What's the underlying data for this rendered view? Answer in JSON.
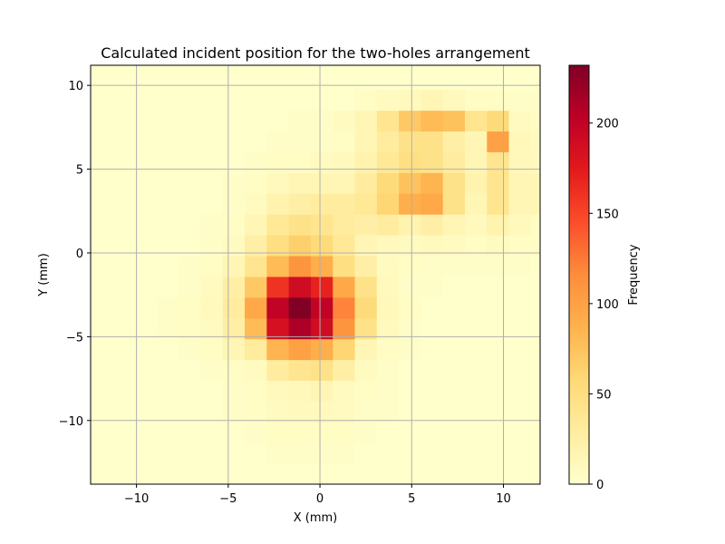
{
  "chart_data": {
    "type": "heatmap",
    "title": "Calculated incident position for the two-holes arrangement",
    "xlabel": "X (mm)",
    "ylabel": "Y (mm)",
    "colorbar_label": "Frequency",
    "colormap": "YlOrRd",
    "xlim": [
      -12.5,
      12
    ],
    "ylim": [
      -13.8,
      11.2
    ],
    "x_ticks": [
      -10,
      -5,
      0,
      5,
      10
    ],
    "x_tick_labels": [
      "−10",
      "−5",
      "0",
      "5",
      "10"
    ],
    "y_ticks": [
      -10,
      -5,
      0,
      5,
      10
    ],
    "y_tick_labels": [
      "−10",
      "−5",
      "0",
      "5",
      "10"
    ],
    "colorbar_range": [
      0,
      232
    ],
    "colorbar_ticks": [
      0,
      50,
      100,
      150,
      200
    ],
    "colorbar_tick_labels": [
      "0",
      "50",
      "100",
      "150",
      "200"
    ],
    "grid": true,
    "x_edges": [
      -12.5,
      -11.3,
      -10.1,
      -8.9,
      -7.7,
      -6.5,
      -5.3,
      -4.1,
      -2.9,
      -1.7,
      -0.5,
      0.7,
      1.9,
      3.1,
      4.3,
      5.5,
      6.7,
      7.9,
      9.1,
      10.3,
      11.5,
      12.0
    ],
    "y_edges": [
      -13.8,
      -12.56,
      -11.32,
      -10.08,
      -8.84,
      -7.6,
      -6.36,
      -5.12,
      -3.88,
      -2.64,
      -1.4,
      -0.16,
      1.08,
      2.32,
      3.56,
      4.8,
      6.04,
      7.28,
      8.52,
      9.76,
      11.0,
      11.2
    ],
    "z": [
      [
        0,
        0,
        0,
        0,
        0,
        0,
        0,
        0,
        0,
        0,
        0,
        0,
        0,
        0,
        0,
        0,
        0,
        0,
        0,
        0,
        0
      ],
      [
        0,
        0,
        0,
        0,
        0,
        0,
        0,
        0,
        3,
        3,
        3,
        3,
        0,
        0,
        0,
        0,
        0,
        0,
        0,
        0,
        0
      ],
      [
        0,
        0,
        0,
        0,
        0,
        0,
        0,
        3,
        5,
        5,
        5,
        5,
        3,
        0,
        0,
        0,
        0,
        0,
        0,
        0,
        0
      ],
      [
        0,
        0,
        0,
        0,
        0,
        0,
        3,
        5,
        8,
        10,
        10,
        8,
        3,
        3,
        0,
        0,
        0,
        0,
        0,
        0,
        0
      ],
      [
        0,
        0,
        0,
        0,
        0,
        0,
        3,
        5,
        10,
        12,
        15,
        8,
        5,
        3,
        0,
        0,
        0,
        0,
        0,
        0,
        0
      ],
      [
        0,
        0,
        0,
        0,
        0,
        3,
        5,
        8,
        30,
        40,
        45,
        25,
        8,
        3,
        0,
        0,
        0,
        0,
        0,
        0,
        0
      ],
      [
        0,
        0,
        0,
        0,
        3,
        5,
        15,
        30,
        85,
        100,
        90,
        60,
        15,
        5,
        3,
        0,
        0,
        0,
        0,
        0,
        0
      ],
      [
        0,
        0,
        0,
        3,
        5,
        8,
        25,
        80,
        185,
        210,
        190,
        110,
        45,
        10,
        3,
        0,
        0,
        0,
        0,
        0,
        0
      ],
      [
        0,
        0,
        0,
        3,
        5,
        10,
        30,
        95,
        200,
        232,
        200,
        120,
        55,
        12,
        5,
        0,
        0,
        0,
        0,
        0,
        0
      ],
      [
        0,
        0,
        0,
        0,
        3,
        8,
        25,
        70,
        160,
        190,
        170,
        95,
        45,
        10,
        3,
        3,
        0,
        0,
        0,
        0,
        0
      ],
      [
        0,
        0,
        0,
        0,
        3,
        5,
        15,
        40,
        80,
        110,
        90,
        50,
        25,
        8,
        5,
        3,
        3,
        3,
        3,
        3,
        0
      ],
      [
        0,
        0,
        0,
        0,
        0,
        3,
        8,
        25,
        50,
        65,
        55,
        35,
        15,
        10,
        8,
        10,
        8,
        5,
        8,
        5,
        3
      ],
      [
        0,
        0,
        0,
        0,
        0,
        3,
        5,
        15,
        35,
        45,
        40,
        30,
        25,
        30,
        20,
        25,
        15,
        10,
        20,
        10,
        5
      ],
      [
        0,
        0,
        0,
        0,
        0,
        0,
        3,
        8,
        20,
        25,
        30,
        30,
        35,
        60,
        90,
        95,
        45,
        15,
        40,
        15,
        15
      ],
      [
        0,
        0,
        0,
        0,
        0,
        0,
        3,
        5,
        10,
        15,
        15,
        15,
        30,
        55,
        75,
        85,
        45,
        20,
        40,
        15,
        15
      ],
      [
        0,
        0,
        0,
        0,
        0,
        0,
        0,
        3,
        5,
        5,
        8,
        10,
        20,
        35,
        50,
        45,
        30,
        15,
        40,
        12,
        10
      ],
      [
        0,
        0,
        0,
        0,
        0,
        0,
        0,
        0,
        3,
        3,
        3,
        5,
        15,
        30,
        45,
        45,
        25,
        15,
        100,
        12,
        8
      ],
      [
        0,
        0,
        0,
        0,
        0,
        0,
        0,
        0,
        0,
        3,
        3,
        8,
        15,
        40,
        70,
        80,
        75,
        40,
        55,
        8,
        5
      ],
      [
        0,
        0,
        0,
        0,
        0,
        0,
        0,
        0,
        0,
        0,
        0,
        0,
        5,
        8,
        10,
        15,
        10,
        5,
        5,
        3,
        3
      ],
      [
        0,
        0,
        0,
        0,
        0,
        0,
        0,
        0,
        0,
        0,
        0,
        0,
        0,
        0,
        0,
        0,
        0,
        0,
        0,
        0,
        0
      ],
      [
        0,
        0,
        0,
        0,
        0,
        0,
        0,
        0,
        0,
        0,
        0,
        0,
        0,
        0,
        0,
        0,
        0,
        0,
        0,
        0,
        0
      ]
    ]
  }
}
